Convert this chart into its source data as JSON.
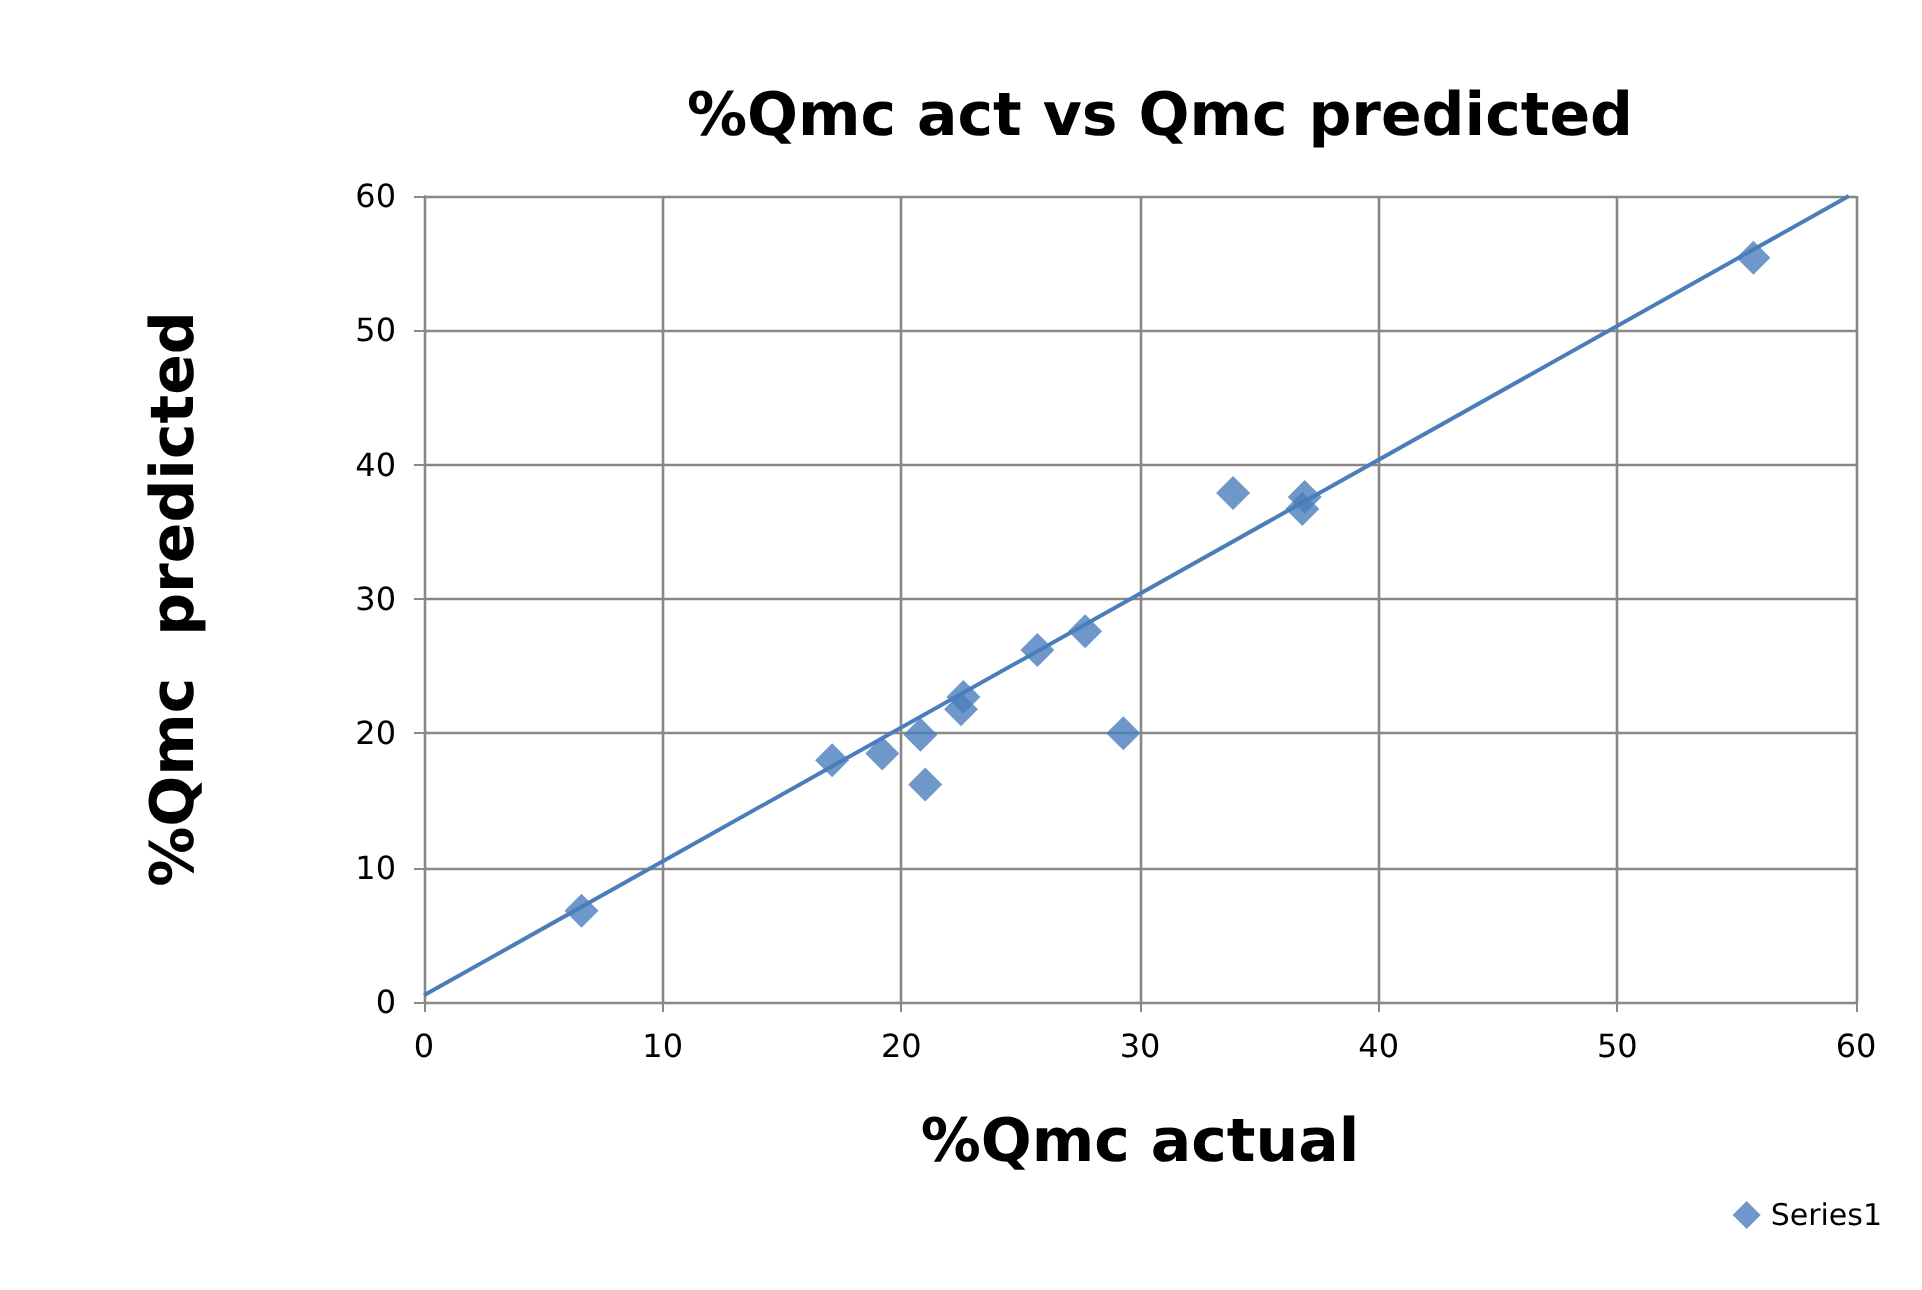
{
  "chart_data": {
    "type": "scatter",
    "title": "%Qmc act vs Qmc predicted",
    "xlabel": "%Qmc actual",
    "ylabel": "%Qmc  predicted",
    "series": [
      {
        "name": "Series1",
        "color": "#4a7ebb",
        "marker": "diamond",
        "x": [
          6.6,
          17.1,
          19.2,
          20.8,
          21.0,
          22.6,
          22.5,
          25.7,
          27.7,
          29.3,
          33.9,
          36.9,
          36.8,
          55.7
        ],
        "values": [
          6.8,
          18.0,
          18.5,
          19.9,
          16.2,
          22.7,
          21.8,
          26.2,
          27.6,
          20.0,
          37.9,
          37.6,
          36.7,
          55.4
        ]
      },
      {
        "type": "line",
        "color": "#4a7ebb",
        "marker": "none",
        "x": [
          0,
          59.7
        ],
        "values": [
          0.5,
          60
        ]
      }
    ],
    "xlim": [
      0,
      60
    ],
    "xticks": [
      0,
      10,
      20,
      30,
      40,
      50,
      60
    ],
    "ylim": [
      0,
      60
    ],
    "yticks": [
      0,
      10,
      20,
      30,
      40,
      50,
      60
    ],
    "grid": true,
    "legend": "bottom right"
  }
}
